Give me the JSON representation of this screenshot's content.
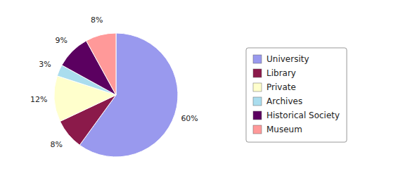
{
  "chart_data": {
    "type": "pie",
    "categories": [
      "University",
      "Library",
      "Private",
      "Archives",
      "Historical Society",
      "Museum"
    ],
    "values": [
      60,
      8,
      12,
      3,
      9,
      8
    ],
    "value_labels": [
      "60%",
      "8%",
      "12%",
      "3%",
      "9%",
      "8%"
    ],
    "colors": [
      "#9999ee",
      "#8b1a4a",
      "#ffffcc",
      "#aaddee",
      "#5b0060",
      "#ff9999"
    ],
    "data_labels": true,
    "legend": "right"
  }
}
